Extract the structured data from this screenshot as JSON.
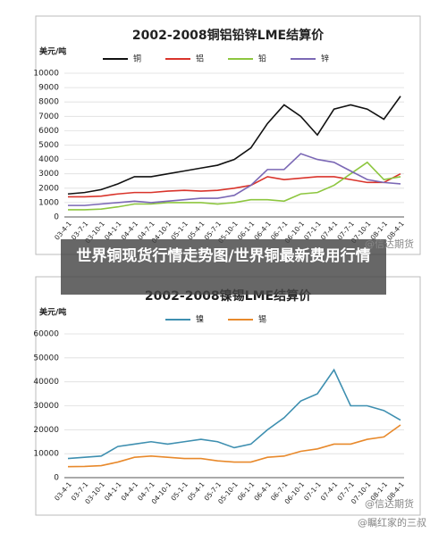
{
  "chart_data": [
    {
      "type": "line",
      "title": "2002-2008铜铝铅锌LME结算价",
      "y_label": "美元/吨",
      "categories": [
        "03-4-1",
        "03-7-1",
        "03-10-1",
        "04-1-1",
        "04-4-1",
        "04-7-1",
        "04-10-1",
        "05-1-1",
        "05-4-1",
        "05-7-1",
        "05-10-1",
        "06-1-1",
        "06-4-1",
        "06-7-1",
        "06-10-1",
        "07-1-1",
        "07-4-1",
        "07-7-1",
        "07-10-1",
        "08-1-1",
        "08-4-1"
      ],
      "series": [
        {
          "name": "铜",
          "color": "#111111",
          "values": [
            1600,
            1700,
            1900,
            2300,
            2800,
            2800,
            3000,
            3200,
            3400,
            3600,
            4000,
            4800,
            6500,
            7800,
            7000,
            5700,
            7500,
            7800,
            7500,
            6800,
            8400
          ]
        },
        {
          "name": "铝",
          "color": "#d9342b",
          "values": [
            1400,
            1400,
            1450,
            1600,
            1700,
            1700,
            1800,
            1850,
            1800,
            1850,
            2000,
            2200,
            2800,
            2600,
            2700,
            2800,
            2800,
            2600,
            2400,
            2400,
            3000
          ]
        },
        {
          "name": "铅",
          "color": "#8dc63f",
          "values": [
            500,
            500,
            550,
            700,
            900,
            900,
            1000,
            1000,
            1000,
            900,
            1000,
            1200,
            1200,
            1100,
            1600,
            1700,
            2200,
            3000,
            3800,
            2600,
            2800
          ]
        },
        {
          "name": "锌",
          "color": "#7b68b5",
          "values": [
            800,
            800,
            900,
            1000,
            1100,
            1000,
            1100,
            1200,
            1300,
            1300,
            1500,
            2200,
            3300,
            3300,
            4400,
            4000,
            3800,
            3200,
            2600,
            2400,
            2300
          ]
        }
      ],
      "ylim": [
        0,
        10000
      ],
      "yticks": [
        0,
        1000,
        2000,
        3000,
        4000,
        5000,
        6000,
        7000,
        8000,
        9000,
        10000
      ],
      "grid": true
    },
    {
      "type": "line",
      "title": "2002-2008镍锡LME结算价",
      "y_label": "美元/吨",
      "categories": [
        "03-4-1",
        "03-7-1",
        "03-10-1",
        "04-1-1",
        "04-4-1",
        "04-7-1",
        "04-10-1",
        "05-1-1",
        "05-4-1",
        "05-7-1",
        "05-10-1",
        "06-1-1",
        "06-4-1",
        "06-7-1",
        "06-10-1",
        "07-1-1",
        "07-4-1",
        "07-7-1",
        "07-10-1",
        "08-1-1",
        "08-4-1"
      ],
      "series": [
        {
          "name": "镍",
          "color": "#3e8fb0",
          "values": [
            8000,
            8500,
            9000,
            13000,
            14000,
            15000,
            14000,
            15000,
            16000,
            15000,
            12500,
            14000,
            20000,
            25000,
            32000,
            35000,
            45000,
            30000,
            30000,
            28000,
            24000
          ]
        },
        {
          "name": "锡",
          "color": "#e8892b",
          "values": [
            4600,
            4700,
            5000,
            6500,
            8500,
            9000,
            8500,
            8000,
            8000,
            7000,
            6500,
            6500,
            8500,
            9000,
            11000,
            12000,
            14000,
            14000,
            16000,
            17000,
            22000
          ]
        }
      ],
      "ylim": [
        0,
        60000
      ],
      "yticks": [
        0,
        10000,
        20000,
        30000,
        40000,
        50000,
        60000
      ],
      "grid": true
    }
  ],
  "caption": "世界铜现货行情走势图/世界铜最新费用行情",
  "watermarks": [
    "@信达期货",
    "@信达期货",
    "@瞩红家的三叔"
  ]
}
